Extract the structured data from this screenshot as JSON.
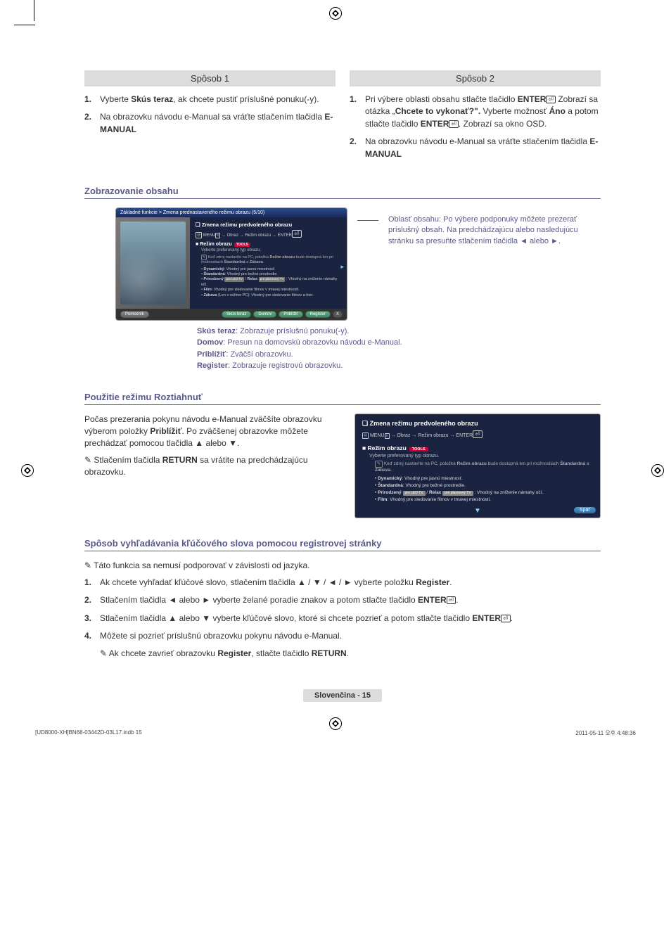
{
  "colors": {
    "header_bg": "#dcdcdc",
    "heading_color": "#5a5a8a",
    "panel_bg": "#1a2340",
    "panel_header_grad_top": "#2a4a8a",
    "panel_header_grad_bot": "#1a2a5a",
    "btn_green_top": "#6a8",
    "btn_green_bot": "#486",
    "btn_blue_top": "#4a9bd4",
    "btn_blue_bot": "#2a6aa0",
    "tools_badge": "#c03"
  },
  "method1": {
    "header": "Spôsob 1",
    "items": [
      {
        "n": "1.",
        "t": "Vyberte <b>Skús teraz</b>, ak chcete pustiť príslušné ponuku(-y)."
      },
      {
        "n": "2.",
        "t": "Na obrazovku návodu e-Manual sa vráťte stlačením tlačidla <b>E-MANUAL</b>"
      }
    ]
  },
  "method2": {
    "header": "Spôsob 2",
    "items": [
      {
        "n": "1.",
        "t": "Pri výbere oblasti obsahu stlačte tlačidlo <b>ENTER</b><span class='enter-icon'>⏎</span> Zobrazí sa otázka „<b>Chcete to vykonať?\".</b> Vyberte možnosť <b>Áno</b> a potom stlačte tlačidlo <b>ENTER</b><span class='enter-icon'>⏎</span>. Zobrazí sa okno OSD."
      },
      {
        "n": "2.",
        "t": "Na obrazovku návodu e-Manual sa vráťte stlačením tlačidla <b>E-MANUAL</b>"
      }
    ]
  },
  "section_display": "Zobrazovanie obsahu",
  "emanual": {
    "breadcrumb": "Základné funkcie > Zmena prednastaveného režimu obrazu (5/10)",
    "title1": "Zmena režimu predvoleného obrazu",
    "path_prefix": "MENU",
    "path": " → Obraz → Režim obrazu → ENTER",
    "title2": "Režim obrazu",
    "tools_label": "TOOLS",
    "sub": "Vyberte preferovaný typ obrazu.",
    "note": "Keď zdroj nastavíte na PC, položka <b>Režim obrazu</b> bude dostupná len pri možnostiach <b>Štandardná</b> a <b>Zábava</b>.",
    "bullets": [
      "<b>Dynamický</b>: Vhodný pre jasnú miestnosť.",
      "<b>Štandardná</b>: Vhodný pre bežné prostredie.",
      "<b>Prirodzený</b> <span class='mini-badge'>pre LED TV</span> / <b>Relax</b> <span class='mini-badge'>pre plazmový TV</span> : Vhodný na zníženie námahy očí.",
      "<b>Film</b>: Vhodný pre sledovanie filmov v tmavej miestnosti.",
      "<b>Zábava</b> (Len v režime PC): Vhodný pre sledovanie filmov a hier."
    ],
    "footer_left": "Pomocník",
    "footer_btns": [
      "Skús teraz",
      "Domov",
      "Priblížiť",
      "Register"
    ],
    "footer_x": "X"
  },
  "content_area_desc": "Oblasť obsahu: Po výbere podponuky môžete prezerať príslušný obsah. Na predchádzajúcu alebo nasledujúcu stránku sa presuňte stlačením tlačidla ◄ alebo ►.",
  "btn_legend": [
    "<b>Skús teraz</b>: Zobrazuje príslušnú ponuku(-y).",
    "<b>Domov</b>: Presun na domovskú obrazovku návodu e-Manual.",
    "<b>Priblížiť</b>: Zväčší obrazovku.",
    "<b>Register</b>: Zobrazuje registrovú obrazovku."
  ],
  "section_zoom": "Použitie režimu Roztiahnuť",
  "zoom_text1": "Počas prezerania pokynu návodu e-Manual zväčšíte obrazovku výberom položky <b>Priblížiť</b>. Po zväčšenej obrazovke môžete prechádzať pomocou tlačidla ▲ alebo ▼.",
  "zoom_note": "Stlačením tlačidla <b>RETURN</b> sa vrátite na predchádzajúcu obrazovku.",
  "zoom_panel": {
    "title1": "Zmena režimu predvoleného obrazu",
    "path": " → Obraz → Režim obrazu → ENTER",
    "title2": "Režim obrazu",
    "tools_label": "TOOLS",
    "sub": "Vyberte preferovaný typ obrazu.",
    "note": "Keď zdroj nastavíte na PC, položka <b>Režim obrazu</b> bude dostupná len pri možnostiach <b>Štandardná</b> a <b>Zábava</b>.",
    "bullets": [
      "<b>Dynamický</b>: Vhodný pre jasnú miestnosť.",
      "<b>Štandardná</b>: Vhodný pre bežné prostredie.",
      "<b>Prirodzený</b> <span class='mini-badge2'>pre LED TV</span> / <b>Relax</b> <span class='mini-badge2'>pre plazmový TV</span> : Vhodný na zníženie námahy očí.",
      "<b>Film</b>: Vhodný pre sledovanie filmov v tmavej miestnosti."
    ],
    "back": "Späť"
  },
  "section_search": "Spôsob vyhľadávania kľúčového slova pomocou registrovej stránky",
  "search_note": "Táto funkcia sa nemusí podporovať v závislosti od jazyka.",
  "search_steps": [
    {
      "n": "1.",
      "t": "Ak chcete vyhľadať kľúčové slovo, stlačením tlačidla ▲ / ▼ / ◄ / ► vyberte položku <b>Register</b>."
    },
    {
      "n": "2.",
      "t": "Stlačením tlačidla ◄ alebo ► vyberte želané poradie znakov a potom stlačte tlačidlo <b>ENTER</b><span class='enter-icon'>⏎</span>."
    },
    {
      "n": "3.",
      "t": "Stlačením tlačidla ▲ alebo ▼ vyberte kľúčové slovo, ktoré si chcete pozrieť a potom stlačte tlačidlo <b>ENTER</b><span class='enter-icon'>⏎</span>."
    },
    {
      "n": "4.",
      "t": "Môžete si pozrieť príslušnú obrazovku pokynu návodu e-Manual."
    }
  ],
  "search_subnote": "Ak chcete zavrieť obrazovku <b>Register</b>, stlačte tlačidlo <b>RETURN</b>.",
  "page_label": "Slovenčina - 15",
  "tiny_left": "[UD8000-XH]BN68-03442D-03L17.indb   15",
  "tiny_right": "2011-05-11   오후 4:48:36"
}
